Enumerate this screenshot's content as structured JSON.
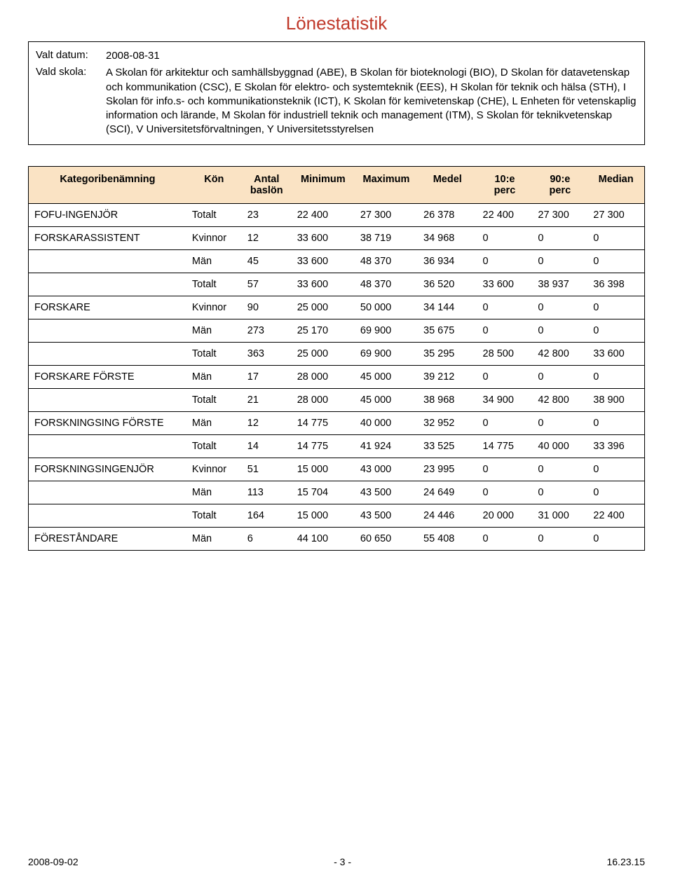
{
  "title": "Lönestatistik",
  "selection": {
    "date_label": "Valt datum:",
    "date_value": "2008-08-31",
    "school_label": "Vald skola:",
    "school_value": "A  Skolan för arkitektur och samhällsbyggnad (ABE), B  Skolan för bioteknologi (BIO), D  Skolan för datavetenskap och kommunikation (CSC), E  Skolan för elektro- och systemteknik (EES), H  Skolan för teknik och hälsa (STH), I  Skolan för info.s- och kommunikationsteknik (ICT), K  Skolan för kemivetenskap (CHE), L  Enheten för vetenskaplig information och lärande, M  Skolan för industriell teknik och management (ITM), S  Skolan för teknikvetenskap (SCI), V  Universitetsförvaltningen, Y  Universitetsstyrelsen"
  },
  "table": {
    "headers": {
      "category": "Kategoribenämning",
      "gender": "Kön",
      "antal": "Antal baslön",
      "min": "Minimum",
      "max": "Maximum",
      "medel": "Medel",
      "p10": "10:e perc",
      "p90": "90:e perc",
      "median": "Median"
    },
    "rows": [
      {
        "cat": "FOFU-INGENJÖR",
        "gen": "Totalt",
        "antal": "23",
        "min": "22 400",
        "max": "27 300",
        "medel": "26 378",
        "p10": "22 400",
        "p90": "27 300",
        "med": "27 300"
      },
      {
        "cat": "FORSKARASSISTENT",
        "gen": "Kvinnor",
        "antal": "12",
        "min": "33 600",
        "max": "38 719",
        "medel": "34 968",
        "p10": "0",
        "p90": "0",
        "med": "0"
      },
      {
        "cat": "",
        "gen": "Män",
        "antal": "45",
        "min": "33 600",
        "max": "48 370",
        "medel": "36 934",
        "p10": "0",
        "p90": "0",
        "med": "0"
      },
      {
        "cat": "",
        "gen": "Totalt",
        "antal": "57",
        "min": "33 600",
        "max": "48 370",
        "medel": "36 520",
        "p10": "33 600",
        "p90": "38 937",
        "med": "36 398"
      },
      {
        "cat": "FORSKARE",
        "gen": "Kvinnor",
        "antal": "90",
        "min": "25 000",
        "max": "50 000",
        "medel": "34 144",
        "p10": "0",
        "p90": "0",
        "med": "0"
      },
      {
        "cat": "",
        "gen": "Män",
        "antal": "273",
        "min": "25 170",
        "max": "69 900",
        "medel": "35 675",
        "p10": "0",
        "p90": "0",
        "med": "0"
      },
      {
        "cat": "",
        "gen": "Totalt",
        "antal": "363",
        "min": "25 000",
        "max": "69 900",
        "medel": "35 295",
        "p10": "28 500",
        "p90": "42 800",
        "med": "33 600"
      },
      {
        "cat": "FORSKARE FÖRSTE",
        "gen": "Män",
        "antal": "17",
        "min": "28 000",
        "max": "45 000",
        "medel": "39 212",
        "p10": "0",
        "p90": "0",
        "med": "0"
      },
      {
        "cat": "",
        "gen": "Totalt",
        "antal": "21",
        "min": "28 000",
        "max": "45 000",
        "medel": "38 968",
        "p10": "34 900",
        "p90": "42 800",
        "med": "38 900"
      },
      {
        "cat": "FORSKNINGSING FÖRSTE",
        "gen": "Män",
        "antal": "12",
        "min": "14 775",
        "max": "40 000",
        "medel": "32 952",
        "p10": "0",
        "p90": "0",
        "med": "0"
      },
      {
        "cat": "",
        "gen": "Totalt",
        "antal": "14",
        "min": "14 775",
        "max": "41 924",
        "medel": "33 525",
        "p10": "14 775",
        "p90": "40 000",
        "med": "33 396"
      },
      {
        "cat": "FORSKNINGSINGENJÖR",
        "gen": "Kvinnor",
        "antal": "51",
        "min": "15 000",
        "max": "43 000",
        "medel": "23 995",
        "p10": "0",
        "p90": "0",
        "med": "0"
      },
      {
        "cat": "",
        "gen": "Män",
        "antal": "113",
        "min": "15 704",
        "max": "43 500",
        "medel": "24 649",
        "p10": "0",
        "p90": "0",
        "med": "0"
      },
      {
        "cat": "",
        "gen": "Totalt",
        "antal": "164",
        "min": "15 000",
        "max": "43 500",
        "medel": "24 446",
        "p10": "20 000",
        "p90": "31 000",
        "med": "22 400"
      },
      {
        "cat": "FÖRESTÅNDARE",
        "gen": "Män",
        "antal": "6",
        "min": "44 100",
        "max": "60 650",
        "medel": "55 408",
        "p10": "0",
        "p90": "0",
        "med": "0"
      }
    ],
    "styling": {
      "header_bg": "#fae3c4",
      "border_color": "#000000",
      "title_color": "#c0392b",
      "font_size_title": 26,
      "font_size_body": 14.5
    }
  },
  "footer": {
    "left": "2008-09-02",
    "center": "- 3 -",
    "right": "16.23.15"
  }
}
